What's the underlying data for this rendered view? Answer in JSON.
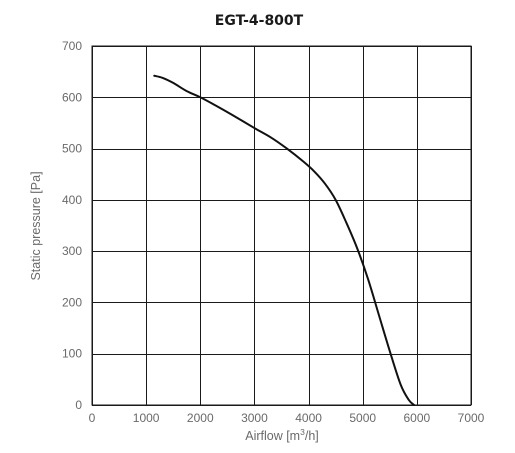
{
  "chart_data": {
    "type": "line",
    "title": "EGT-4-800T",
    "xlabel": "Airflow [m3/h]",
    "xlabel_parts": {
      "prefix": "Airflow [m",
      "sup": "3",
      "suffix": "/h]"
    },
    "ylabel": "Static pressure [Pa]",
    "xlim": [
      0,
      7000
    ],
    "ylim": [
      0,
      700
    ],
    "x_ticks": [
      "0",
      "1000",
      "2000",
      "3000",
      "4000",
      "5000",
      "6000",
      "7000"
    ],
    "y_ticks": [
      "0",
      "100",
      "200",
      "300",
      "400",
      "500",
      "600",
      "700"
    ],
    "grid": true,
    "series": [
      {
        "color": "#111111",
        "x": [
          1150,
          1300,
          1500,
          1750,
          2000,
          2300,
          2600,
          3000,
          3300,
          3600,
          3900,
          4100,
          4300,
          4500,
          4700,
          4900,
          5100,
          5300,
          5500,
          5700,
          5850,
          5950
        ],
        "y": [
          642,
          638,
          628,
          612,
          600,
          583,
          565,
          540,
          522,
          500,
          475,
          456,
          432,
          400,
          355,
          305,
          245,
          175,
          105,
          40,
          10,
          0
        ]
      }
    ]
  }
}
